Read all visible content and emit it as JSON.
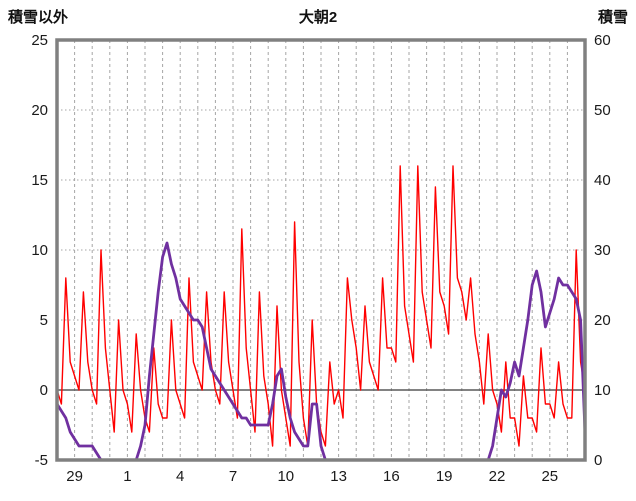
{
  "chart_data": {
    "type": "line",
    "title": "大朝2",
    "x_axis": {
      "unit": "day",
      "range": [
        0,
        30
      ],
      "gridline_step": 1,
      "tick_positions": [
        1,
        4,
        7,
        10,
        13,
        16,
        19,
        22,
        25,
        28
      ],
      "tick_labels": [
        "29",
        "1",
        "4",
        "7",
        "10",
        "13",
        "16",
        "19",
        "22",
        "25"
      ]
    },
    "y_axis_left": {
      "label": "積雪以外",
      "range": [
        -5,
        25
      ],
      "ticks": [
        25,
        20,
        15,
        10,
        5,
        0,
        -5
      ]
    },
    "y_axis_right": {
      "label": "積雪",
      "range": [
        0,
        60
      ],
      "ticks": [
        60,
        50,
        40,
        30,
        20,
        10,
        0
      ]
    },
    "grid": {
      "vertical_style": "dashed",
      "horizontal_style": "dotted",
      "zero_line": true
    },
    "colors": {
      "background": "#FFFFFF",
      "frame": "#808080",
      "grid": "#A6A6A6",
      "zero_line": "#595959",
      "non_snow_series": "#FF0000",
      "snow_series": "#7030A0"
    },
    "series": [
      {
        "key": "non_snow",
        "name": "積雪以外",
        "axis": "left",
        "color": "#FF0000",
        "width": 1.4,
        "x_step": 0.25,
        "values": [
          0,
          -1,
          8,
          2,
          1,
          0,
          7,
          2,
          0,
          -1,
          10,
          3,
          0,
          -3,
          5,
          0,
          -1,
          -3,
          4,
          0,
          -2,
          -3,
          3,
          -1,
          -2,
          -2,
          5,
          0,
          -1,
          -2,
          8,
          2,
          1,
          0,
          7,
          2,
          0,
          -1,
          7,
          2,
          0,
          -2,
          11.5,
          3,
          0,
          -3,
          7,
          1,
          -1,
          -4,
          6,
          0,
          -2,
          -4,
          12,
          2,
          -2,
          -4,
          5,
          -1,
          -3,
          -4,
          2,
          -1,
          0,
          -2,
          8,
          5,
          3,
          0,
          6,
          2,
          1,
          0,
          8,
          3,
          3,
          2,
          16,
          6,
          4,
          2,
          16,
          7,
          5,
          3,
          14.5,
          7,
          6,
          4,
          16,
          8,
          7,
          5,
          8,
          4,
          2,
          -1,
          4,
          0,
          -1,
          -3,
          2,
          -2,
          -2,
          -4,
          1,
          -2,
          -2,
          -3,
          3,
          -1,
          -1,
          -2,
          2,
          -1,
          -2,
          -2,
          10,
          2,
          0
        ]
      },
      {
        "key": "snow",
        "name": "積雪",
        "axis": "right",
        "color": "#7030A0",
        "width": 2.8,
        "x_step": 0.25,
        "values": [
          8,
          7,
          6,
          4,
          3,
          2,
          2,
          2,
          2,
          1,
          0,
          0,
          0,
          0,
          0,
          0,
          0,
          0,
          0,
          2,
          5,
          12,
          18,
          24,
          29,
          31,
          28,
          26,
          23,
          22,
          21,
          20,
          20,
          19,
          16,
          13,
          12,
          11,
          10,
          9,
          8,
          7,
          6,
          6,
          5,
          5,
          5,
          5,
          5,
          8,
          12,
          13,
          9,
          6,
          4,
          3,
          2,
          2,
          8,
          8,
          2,
          0,
          0,
          0,
          0,
          0,
          0,
          0,
          0,
          0,
          0,
          0,
          0,
          0,
          0,
          0,
          0,
          0,
          0,
          0,
          0,
          0,
          0,
          0,
          0,
          0,
          0,
          0,
          0,
          0,
          0,
          0,
          0,
          0,
          0,
          0,
          0,
          0,
          0,
          2,
          6,
          10,
          9,
          11,
          14,
          12,
          16,
          20,
          25,
          27,
          24,
          19,
          21,
          23,
          26,
          25,
          25,
          24,
          23,
          20,
          4
        ]
      }
    ]
  }
}
